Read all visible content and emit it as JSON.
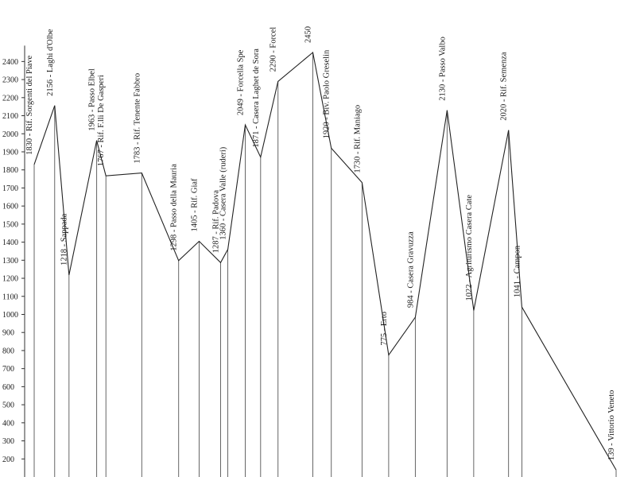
{
  "chart_data": {
    "type": "line",
    "title": "",
    "xlabel": "",
    "ylabel": "",
    "ylim": [
      100,
      2550
    ],
    "yticks": [
      200,
      300,
      400,
      500,
      600,
      700,
      800,
      900,
      1000,
      1100,
      1200,
      1300,
      1400,
      1500,
      1600,
      1700,
      1800,
      1900,
      2000,
      2100,
      2200,
      2300,
      2400
    ],
    "grid": false,
    "points": [
      {
        "label": "1830 - Rif. Sorgenti del Piave",
        "elev": 1830,
        "dist": 0
      },
      {
        "label": "2156 - Laghi d'Olbe",
        "elev": 2156,
        "dist": 1
      },
      {
        "label": "1218 - Sappada",
        "elev": 1218,
        "dist": 1.7
      },
      {
        "label": "1963 - Passo Elbel",
        "elev": 1963,
        "dist": 3.05
      },
      {
        "label": "1767 - Rif. F.lli De Gasperi",
        "elev": 1767,
        "dist": 3.5
      },
      {
        "label": "1783 - Rif. Tenente Fabbro",
        "elev": 1783,
        "dist": 5.25
      },
      {
        "label": "1298 - Passo della Mauria",
        "elev": 1298,
        "dist": 7.05
      },
      {
        "label": "1405 - Rif. Giaf",
        "elev": 1405,
        "dist": 8.05
      },
      {
        "label": "1287 - Rif. Padova",
        "elev": 1287,
        "dist": 9.1
      },
      {
        "label": "1360 - Casera Valle (ruderi)",
        "elev": 1360,
        "dist": 9.45
      },
      {
        "label": "2049 - Forcella Spe",
        "elev": 2049,
        "dist": 10.3
      },
      {
        "label": "1871 - Casera Laghet de Sora",
        "elev": 1871,
        "dist": 11.05
      },
      {
        "label": "2290 - Forcel",
        "elev": 2290,
        "dist": 11.9
      },
      {
        "label": "2450",
        "elev": 2450,
        "dist": 13.6
      },
      {
        "label": "1920 - Biv. Paolo Greselin",
        "elev": 1920,
        "dist": 14.5
      },
      {
        "label": "1730 - Rif. Maniago",
        "elev": 1730,
        "dist": 16
      },
      {
        "label": "775 - Erto",
        "elev": 775,
        "dist": 17.3
      },
      {
        "label": "984 - Casera Gravuzza",
        "elev": 984,
        "dist": 18.6
      },
      {
        "label": "2130 - Passo Valbo",
        "elev": 2130,
        "dist": 20.15
      },
      {
        "label": "1022 - Agriturismo Casera Cate",
        "elev": 1022,
        "dist": 21.45
      },
      {
        "label": "2020 - Rif. Semenza",
        "elev": 2020,
        "dist": 23.15
      },
      {
        "label": "1041 - Campon",
        "elev": 1041,
        "dist": 23.8
      },
      {
        "label": "139 - Vittorio Veneto",
        "elev": 139,
        "dist": 28.4
      }
    ]
  }
}
